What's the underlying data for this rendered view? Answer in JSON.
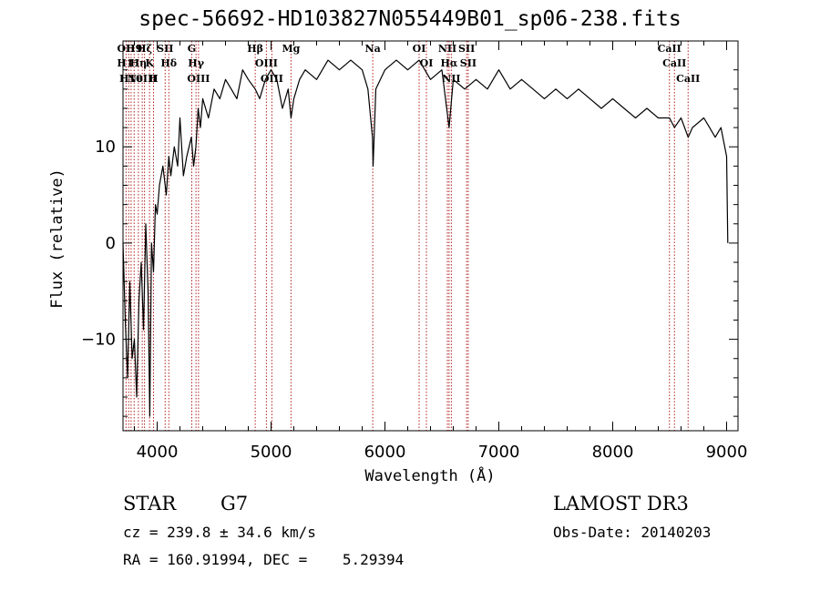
{
  "chart_data": {
    "type": "line",
    "title": "spec-56692-HD103827N055449B01_sp06-238.fits",
    "xlabel": "Wavelength (Å)",
    "ylabel": "Flux (relative)",
    "xlim": [
      3700,
      9100
    ],
    "ylim": [
      -19.5,
      21
    ],
    "x_ticks": [
      4000,
      5000,
      6000,
      7000,
      8000,
      9000
    ],
    "y_ticks": [
      -10,
      0,
      10
    ],
    "series": [
      {
        "name": "spectrum",
        "x": [
          3700,
          3720,
          3740,
          3760,
          3780,
          3800,
          3820,
          3840,
          3860,
          3880,
          3900,
          3920,
          3935,
          3950,
          3968,
          3985,
          4000,
          4020,
          4050,
          4080,
          4102,
          4120,
          4150,
          4180,
          4200,
          4230,
          4260,
          4300,
          4320,
          4340,
          4360,
          4380,
          4400,
          4450,
          4500,
          4550,
          4600,
          4650,
          4700,
          4750,
          4800,
          4861,
          4900,
          4950,
          5000,
          5050,
          5100,
          5150,
          5175,
          5200,
          5250,
          5300,
          5400,
          5500,
          5600,
          5700,
          5800,
          5850,
          5890,
          5896,
          5920,
          6000,
          6100,
          6200,
          6300,
          6400,
          6500,
          6563,
          6600,
          6700,
          6800,
          6900,
          7000,
          7100,
          7200,
          7300,
          7400,
          7500,
          7600,
          7700,
          7800,
          7900,
          8000,
          8100,
          8200,
          8300,
          8400,
          8498,
          8542,
          8600,
          8662,
          8700,
          8800,
          8850,
          8900,
          8950,
          9000,
          9010
        ],
        "y": [
          0,
          -8,
          -14,
          -4,
          -12,
          -10,
          -16,
          -6,
          -2,
          -9,
          2,
          -5,
          -18,
          0,
          -3,
          4,
          3,
          6,
          8,
          5,
          9,
          7,
          10,
          8,
          13,
          7,
          9,
          11,
          8,
          10,
          14,
          12,
          15,
          13,
          16,
          15,
          17,
          16,
          15,
          18,
          17,
          16,
          15,
          17,
          18,
          17,
          14,
          16,
          13,
          15,
          17,
          18,
          17,
          19,
          18,
          19,
          18,
          16,
          11,
          8,
          16,
          18,
          19,
          18,
          19,
          17,
          18,
          12,
          17,
          16,
          17,
          16,
          18,
          16,
          17,
          16,
          15,
          16,
          15,
          16,
          15,
          14,
          15,
          14,
          13,
          14,
          13,
          13,
          12,
          13,
          11,
          12,
          13,
          12,
          11,
          12,
          9,
          0
        ]
      }
    ],
    "line_markers": [
      {
        "wl": 3727,
        "label": "OII"
      },
      {
        "wl": 3750,
        "label": "H11"
      },
      {
        "wl": 3771,
        "label": "H10"
      },
      {
        "wl": 3798,
        "label": "H9"
      },
      {
        "wl": 3835,
        "label": "Hη"
      },
      {
        "wl": 3869,
        "label": "NeIII"
      },
      {
        "wl": 3889,
        "label": "Hζ"
      },
      {
        "wl": 3933,
        "label": "K"
      },
      {
        "wl": 3968,
        "label": "H"
      },
      {
        "wl": 4070,
        "label": "SII"
      },
      {
        "wl": 4102,
        "label": "Hδ"
      },
      {
        "wl": 4304,
        "label": "G"
      },
      {
        "wl": 4341,
        "label": "Hγ"
      },
      {
        "wl": 4363,
        "label": "OIII"
      },
      {
        "wl": 4861,
        "label": "Hβ"
      },
      {
        "wl": 4959,
        "label": "OIII"
      },
      {
        "wl": 5007,
        "label": "OIII"
      },
      {
        "wl": 5175,
        "label": "Mg"
      },
      {
        "wl": 5893,
        "label": "Na"
      },
      {
        "wl": 6300,
        "label": "OI"
      },
      {
        "wl": 6364,
        "label": "OI"
      },
      {
        "wl": 6548,
        "label": "NII"
      },
      {
        "wl": 6563,
        "label": "Hα"
      },
      {
        "wl": 6583,
        "label": "NII"
      },
      {
        "wl": 6717,
        "label": "SII"
      },
      {
        "wl": 6731,
        "label": "SII"
      },
      {
        "wl": 8498,
        "label": "CaII"
      },
      {
        "wl": 8542,
        "label": "CaII"
      },
      {
        "wl": 8662,
        "label": "CaII"
      }
    ]
  },
  "info": {
    "object_type": "STAR",
    "subclass": "G7",
    "survey": "LAMOST DR3",
    "cz": "cz = 239.8 ± 34.6 km/s",
    "obs_date": "Obs-Date: 20140203",
    "coords": "RA = 160.91994, DEC =    5.29394"
  },
  "colors": {
    "spectrum": "#000000",
    "marker": "#b02020"
  }
}
